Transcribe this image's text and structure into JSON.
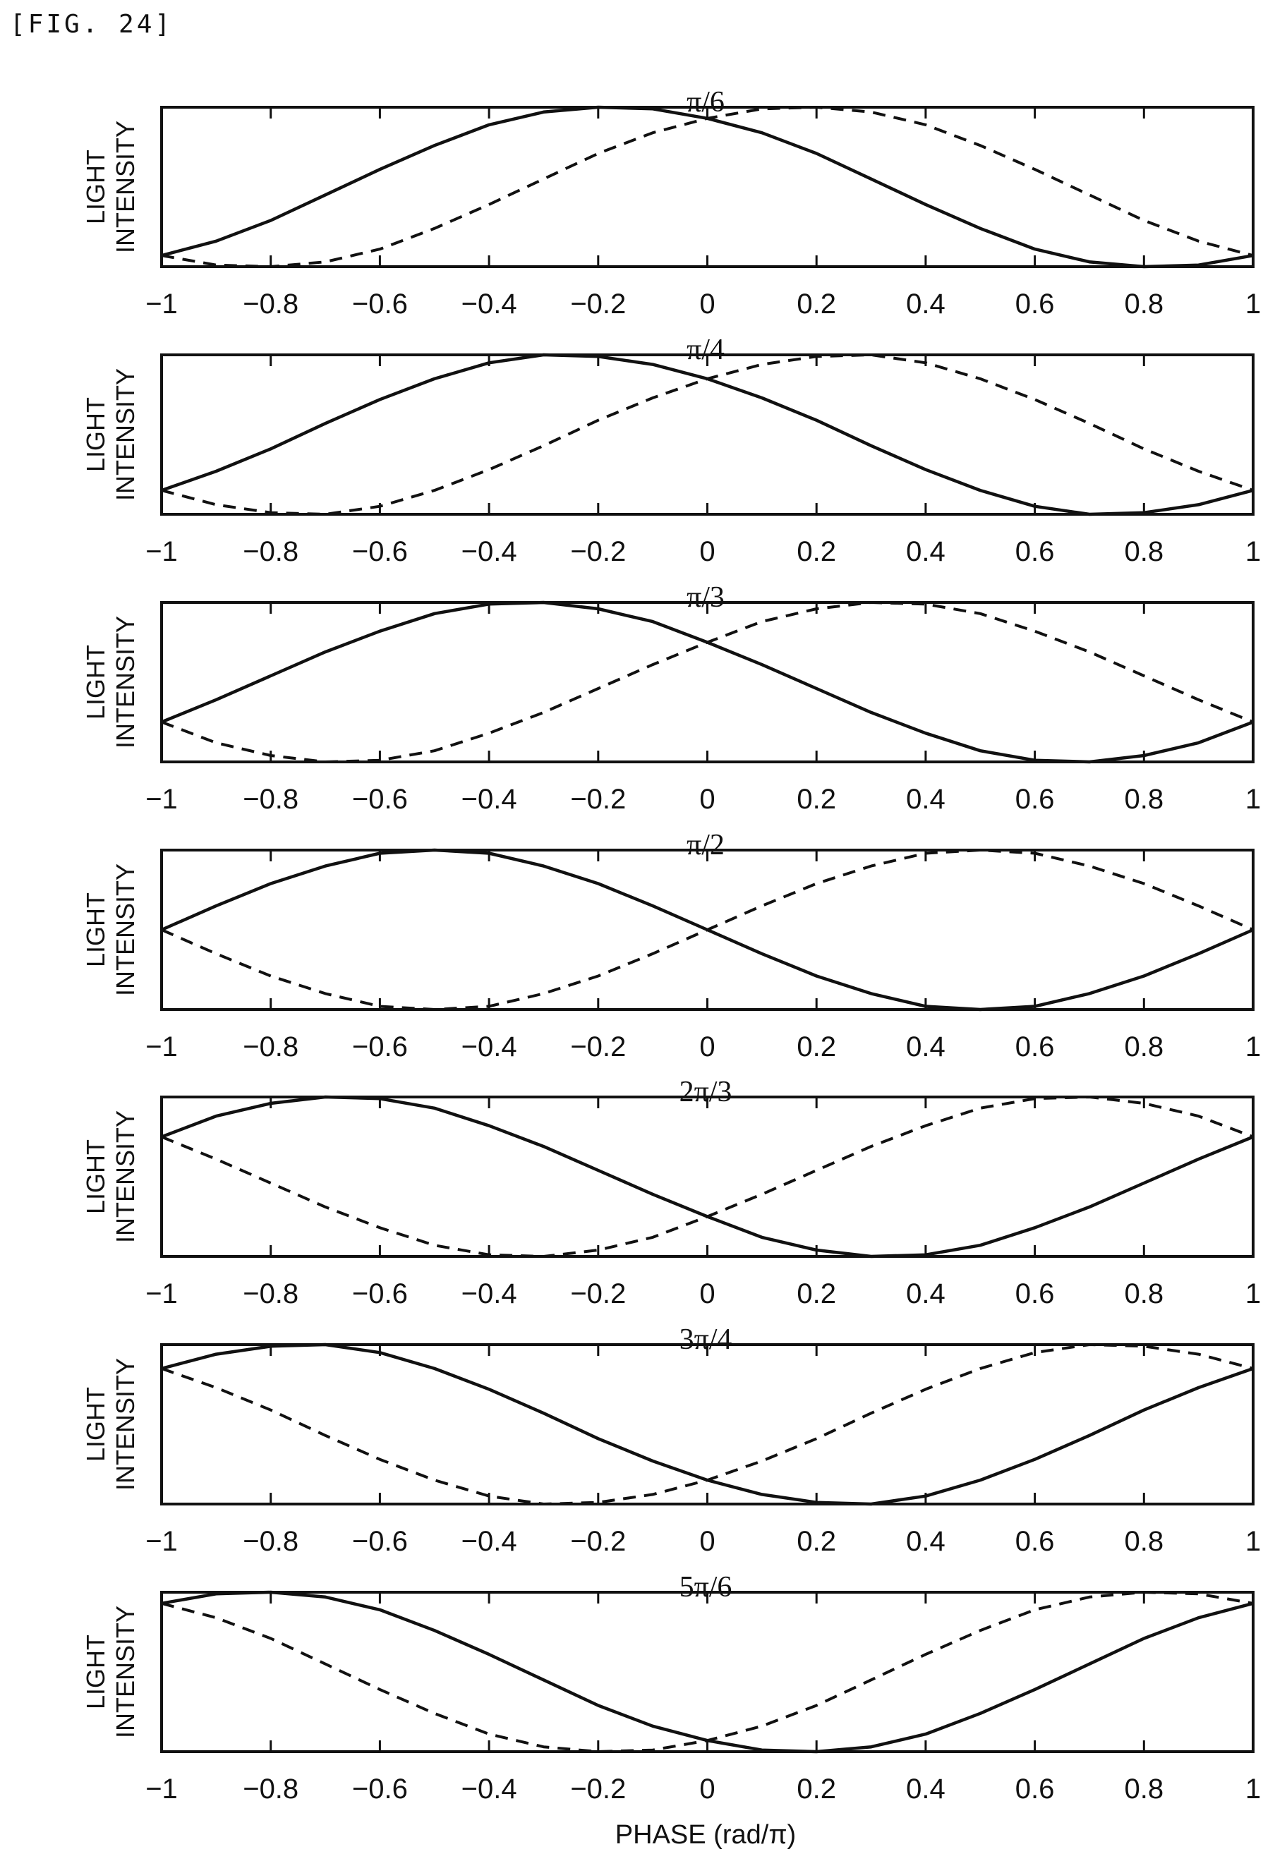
{
  "figure_label": "[FIG. 24]",
  "colors": {
    "line": "#111111",
    "background": "#ffffff"
  },
  "chart_data": [
    {
      "type": "line",
      "title": "π/6",
      "ylabel": [
        "LIGHT",
        "INTENSITY"
      ],
      "xlabel": "",
      "xlim": [
        -1,
        1
      ],
      "ylim": [
        0,
        1
      ],
      "xticks": [
        "−1",
        "−0.8",
        "−0.6",
        "−0.4",
        "−0.2",
        "0",
        "0.2",
        "0.4",
        "0.6",
        "0.8",
        "1"
      ],
      "x": [
        -1,
        -0.9,
        -0.8,
        -0.7,
        -0.6,
        -0.5,
        -0.4,
        -0.3,
        -0.2,
        -0.1,
        0,
        0.1,
        0.2,
        0.3,
        0.4,
        0.5,
        0.6,
        0.7,
        0.8,
        0.9,
        1
      ],
      "series": [
        {
          "style": "solid",
          "values": [
            0.07,
            0.16,
            0.29,
            0.45,
            0.61,
            0.76,
            0.89,
            0.97,
            1.0,
            0.99,
            0.93,
            0.84,
            0.71,
            0.55,
            0.39,
            0.24,
            0.11,
            0.03,
            0.0,
            0.01,
            0.07
          ]
        },
        {
          "style": "dashed",
          "values": [
            0.07,
            0.01,
            0.0,
            0.03,
            0.11,
            0.24,
            0.39,
            0.55,
            0.71,
            0.84,
            0.93,
            0.99,
            1.0,
            0.97,
            0.89,
            0.76,
            0.61,
            0.45,
            0.29,
            0.16,
            0.07
          ]
        }
      ]
    },
    {
      "type": "line",
      "title": "π/4",
      "ylabel": [
        "LIGHT",
        "INTENSITY"
      ],
      "xlabel": "",
      "xlim": [
        -1,
        1
      ],
      "ylim": [
        0,
        1
      ],
      "xticks": [
        "−1",
        "−0.8",
        "−0.6",
        "−0.4",
        "−0.2",
        "0",
        "0.2",
        "0.4",
        "0.6",
        "0.8",
        "1"
      ],
      "x": [
        -1,
        -0.9,
        -0.8,
        -0.7,
        -0.6,
        -0.5,
        -0.4,
        -0.3,
        -0.2,
        -0.1,
        0,
        0.1,
        0.2,
        0.3,
        0.4,
        0.5,
        0.6,
        0.7,
        0.8,
        0.9,
        1
      ],
      "series": [
        {
          "style": "solid",
          "values": [
            0.15,
            0.27,
            0.41,
            0.57,
            0.72,
            0.85,
            0.95,
            1.0,
            0.99,
            0.94,
            0.85,
            0.73,
            0.59,
            0.43,
            0.28,
            0.15,
            0.05,
            0.0,
            0.01,
            0.06,
            0.15
          ]
        },
        {
          "style": "dashed",
          "values": [
            0.15,
            0.06,
            0.01,
            0.0,
            0.05,
            0.15,
            0.28,
            0.43,
            0.59,
            0.73,
            0.85,
            0.94,
            0.99,
            1.0,
            0.95,
            0.85,
            0.72,
            0.57,
            0.41,
            0.27,
            0.15
          ]
        }
      ]
    },
    {
      "type": "line",
      "title": "π/3",
      "ylabel": [
        "LIGHT",
        "INTENSITY"
      ],
      "xlabel": "",
      "xlim": [
        -1,
        1
      ],
      "ylim": [
        0,
        1
      ],
      "xticks": [
        "−1",
        "−0.8",
        "−0.6",
        "−0.4",
        "−0.2",
        "0",
        "0.2",
        "0.4",
        "0.6",
        "0.8",
        "1"
      ],
      "x": [
        -1,
        -0.9,
        -0.8,
        -0.7,
        -0.6,
        -0.5,
        -0.4,
        -0.3,
        -0.2,
        -0.1,
        0,
        0.1,
        0.2,
        0.3,
        0.4,
        0.5,
        0.6,
        0.7,
        0.8,
        0.9,
        1
      ],
      "series": [
        {
          "style": "solid",
          "values": [
            0.25,
            0.39,
            0.54,
            0.69,
            0.82,
            0.93,
            0.99,
            1.0,
            0.96,
            0.88,
            0.75,
            0.61,
            0.46,
            0.31,
            0.18,
            0.07,
            0.01,
            0.0,
            0.04,
            0.12,
            0.25
          ]
        },
        {
          "style": "dashed",
          "values": [
            0.25,
            0.12,
            0.04,
            0.0,
            0.01,
            0.07,
            0.18,
            0.31,
            0.46,
            0.61,
            0.75,
            0.88,
            0.96,
            1.0,
            0.99,
            0.93,
            0.82,
            0.69,
            0.54,
            0.39,
            0.25
          ]
        }
      ]
    },
    {
      "type": "line",
      "title": "π/2",
      "ylabel": [
        "LIGHT",
        "INTENSITY"
      ],
      "xlabel": "",
      "xlim": [
        -1,
        1
      ],
      "ylim": [
        0,
        1
      ],
      "xticks": [
        "−1",
        "−0.8",
        "−0.6",
        "−0.4",
        "−0.2",
        "0",
        "0.2",
        "0.4",
        "0.6",
        "0.8",
        "1"
      ],
      "x": [
        -1,
        -0.9,
        -0.8,
        -0.7,
        -0.6,
        -0.5,
        -0.4,
        -0.3,
        -0.2,
        -0.1,
        0,
        0.1,
        0.2,
        0.3,
        0.4,
        0.5,
        0.6,
        0.7,
        0.8,
        0.9,
        1
      ],
      "series": [
        {
          "style": "solid",
          "values": [
            0.5,
            0.65,
            0.79,
            0.9,
            0.98,
            1.0,
            0.98,
            0.9,
            0.79,
            0.65,
            0.5,
            0.35,
            0.21,
            0.1,
            0.02,
            0.0,
            0.02,
            0.1,
            0.21,
            0.35,
            0.5
          ]
        },
        {
          "style": "dashed",
          "values": [
            0.5,
            0.35,
            0.21,
            0.1,
            0.02,
            0.0,
            0.02,
            0.1,
            0.21,
            0.35,
            0.5,
            0.65,
            0.79,
            0.9,
            0.98,
            1.0,
            0.98,
            0.9,
            0.79,
            0.65,
            0.5
          ]
        }
      ]
    },
    {
      "type": "line",
      "title": "2π/3",
      "ylabel": [
        "LIGHT",
        "INTENSITY"
      ],
      "xlabel": "",
      "xlim": [
        -1,
        1
      ],
      "ylim": [
        0,
        1
      ],
      "xticks": [
        "−1",
        "−0.8",
        "−0.6",
        "−0.4",
        "−0.2",
        "0",
        "0.2",
        "0.4",
        "0.6",
        "0.8",
        "1"
      ],
      "x": [
        -1,
        -0.9,
        -0.8,
        -0.7,
        -0.6,
        -0.5,
        -0.4,
        -0.3,
        -0.2,
        -0.1,
        0,
        0.1,
        0.2,
        0.3,
        0.4,
        0.5,
        0.6,
        0.7,
        0.8,
        0.9,
        1
      ],
      "series": [
        {
          "style": "solid",
          "values": [
            0.75,
            0.88,
            0.96,
            1.0,
            0.99,
            0.93,
            0.82,
            0.69,
            0.54,
            0.39,
            0.25,
            0.12,
            0.04,
            0.0,
            0.01,
            0.07,
            0.18,
            0.31,
            0.46,
            0.61,
            0.75
          ]
        },
        {
          "style": "dashed",
          "values": [
            0.75,
            0.61,
            0.46,
            0.31,
            0.18,
            0.07,
            0.01,
            0.0,
            0.04,
            0.12,
            0.25,
            0.39,
            0.54,
            0.69,
            0.82,
            0.93,
            0.99,
            1.0,
            0.96,
            0.88,
            0.75
          ]
        }
      ]
    },
    {
      "type": "line",
      "title": "3π/4",
      "ylabel": [
        "LIGHT",
        "INTENSITY"
      ],
      "xlabel": "",
      "xlim": [
        -1,
        1
      ],
      "ylim": [
        0,
        1
      ],
      "xticks": [
        "−1",
        "−0.8",
        "−0.6",
        "−0.4",
        "−0.2",
        "0",
        "0.2",
        "0.4",
        "0.6",
        "0.8",
        "1"
      ],
      "x": [
        -1,
        -0.9,
        -0.8,
        -0.7,
        -0.6,
        -0.5,
        -0.4,
        -0.3,
        -0.2,
        -0.1,
        0,
        0.1,
        0.2,
        0.3,
        0.4,
        0.5,
        0.6,
        0.7,
        0.8,
        0.9,
        1
      ],
      "series": [
        {
          "style": "solid",
          "values": [
            0.85,
            0.94,
            0.99,
            1.0,
            0.95,
            0.85,
            0.72,
            0.57,
            0.41,
            0.27,
            0.15,
            0.06,
            0.01,
            0.0,
            0.05,
            0.15,
            0.28,
            0.43,
            0.59,
            0.73,
            0.85
          ]
        },
        {
          "style": "dashed",
          "values": [
            0.85,
            0.73,
            0.59,
            0.43,
            0.28,
            0.15,
            0.05,
            0.0,
            0.01,
            0.06,
            0.15,
            0.27,
            0.41,
            0.57,
            0.72,
            0.85,
            0.95,
            1.0,
            0.99,
            0.94,
            0.85
          ]
        }
      ]
    },
    {
      "type": "line",
      "title": "5π/6",
      "ylabel": [
        "LIGHT",
        "INTENSITY"
      ],
      "xlabel": "PHASE (rad/π)",
      "xlim": [
        -1,
        1
      ],
      "ylim": [
        0,
        1
      ],
      "xticks": [
        "−1",
        "−0.8",
        "−0.6",
        "−0.4",
        "−0.2",
        "0",
        "0.2",
        "0.4",
        "0.6",
        "0.8",
        "1"
      ],
      "x": [
        -1,
        -0.9,
        -0.8,
        -0.7,
        -0.6,
        -0.5,
        -0.4,
        -0.3,
        -0.2,
        -0.1,
        0,
        0.1,
        0.2,
        0.3,
        0.4,
        0.5,
        0.6,
        0.7,
        0.8,
        0.9,
        1
      ],
      "series": [
        {
          "style": "solid",
          "values": [
            0.93,
            0.99,
            1.0,
            0.97,
            0.89,
            0.76,
            0.61,
            0.45,
            0.29,
            0.16,
            0.07,
            0.01,
            0.0,
            0.03,
            0.11,
            0.24,
            0.39,
            0.55,
            0.71,
            0.84,
            0.93
          ]
        },
        {
          "style": "dashed",
          "values": [
            0.93,
            0.84,
            0.71,
            0.55,
            0.39,
            0.24,
            0.11,
            0.03,
            0.0,
            0.01,
            0.07,
            0.16,
            0.29,
            0.45,
            0.61,
            0.76,
            0.89,
            0.97,
            1.0,
            0.99,
            0.93
          ]
        }
      ]
    }
  ]
}
